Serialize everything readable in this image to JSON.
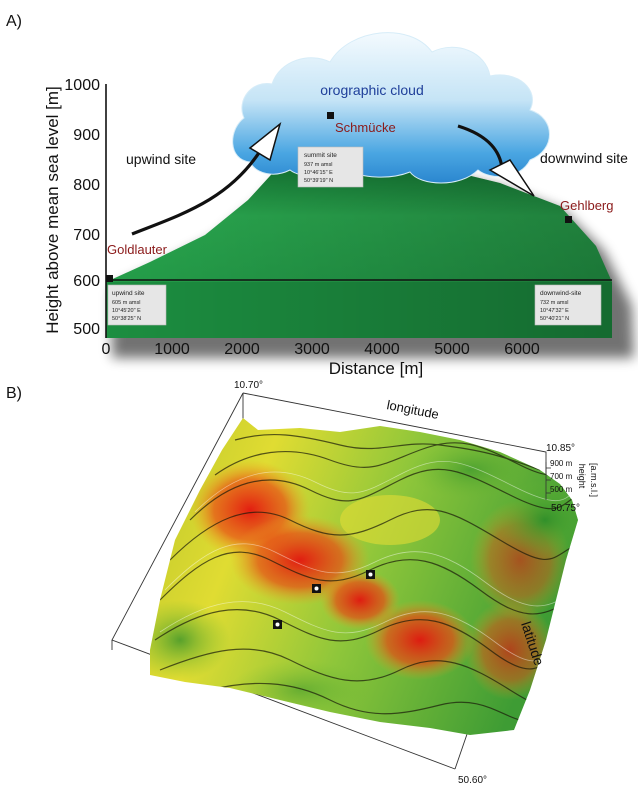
{
  "panel_a": {
    "panel_label": "A)",
    "y_axis_label": "Height above mean sea level [m]",
    "x_axis_label": "Distance [m]",
    "y_ticks": [
      "1000",
      "900",
      "800",
      "700",
      "600",
      "500"
    ],
    "x_ticks": [
      "0",
      "1000",
      "2000",
      "3000",
      "4000",
      "5000",
      "6000"
    ],
    "cloud_label": "orographic cloud",
    "upwind_label": "upwind site",
    "downwind_label": "downwind site",
    "places": {
      "goldlauter": "Goldlauter",
      "schmuecke": "Schmücke",
      "gehlberg": "Gehlberg"
    },
    "site_boxes": {
      "summit": {
        "title": "summit site",
        "alt": "937 m amsl",
        "lon": "10°46'15\" E",
        "lat": "50°39'19\" N"
      },
      "upwind": {
        "title": "upwind site",
        "alt": "605 m amsl",
        "lon": "10°45'20\" E",
        "lat": "50°38'25\" N"
      },
      "downwind": {
        "title": "downwind-site",
        "alt": "732 m amsl",
        "lon": "10°47'32\" E",
        "lat": "50°40'21\" N"
      }
    },
    "colors": {
      "terrain_green": "#1e9a46",
      "terrain_dark": "#0b5a25",
      "cloud_blue": "#3d9fe0",
      "cloud_light": "#e9f5fc",
      "place_text": "#8b1a1a",
      "cloud_text": "#1f3f9a"
    }
  },
  "panel_b": {
    "panel_label": "B)",
    "longitude_label": "longitude",
    "latitude_label": "latitude",
    "height_label": "height",
    "height_unit": "[a.m.s.l.]",
    "coord_top_left": "10.70°",
    "coord_top_right": "10.85°",
    "coord_right": "50.75°",
    "coord_bottom": "50.60°",
    "height_ticks": [
      "900 m",
      "700 m",
      "500 m"
    ],
    "colors": {
      "high": "#e01a12",
      "mid": "#d8c81c",
      "low": "#2f9a2e"
    }
  }
}
